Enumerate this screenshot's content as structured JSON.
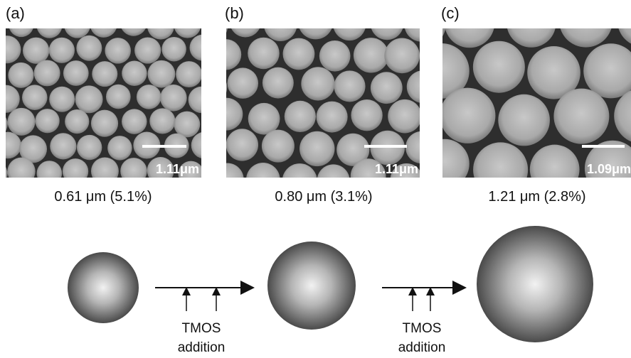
{
  "panels": [
    {
      "label": "(a)",
      "scale_bar": "1.11μm",
      "caption": "0.61 μm (5.1%)"
    },
    {
      "label": "(b)",
      "scale_bar": "1.11μm",
      "caption": "0.80 μm (3.1%)"
    },
    {
      "label": "(c)",
      "scale_bar": "1.09μm",
      "caption": "1.21 μm (2.8%)"
    }
  ],
  "steps": [
    {
      "line1": "TMOS",
      "line2": "addition"
    },
    {
      "line1": "TMOS",
      "line2": "addition"
    }
  ]
}
